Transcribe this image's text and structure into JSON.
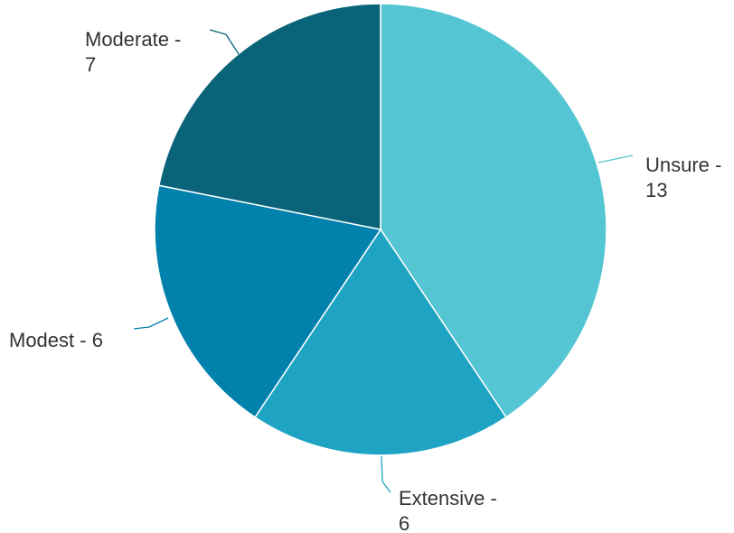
{
  "chart_data": {
    "type": "pie",
    "title": "",
    "slices": [
      {
        "name": "Unsure",
        "value": 13,
        "color": "#54C5D3",
        "label_lines": [
          "Unsure -",
          "13"
        ]
      },
      {
        "name": "Extensive",
        "value": 6,
        "color": "#1FA3C3",
        "label_lines": [
          "Extensive -",
          "6"
        ]
      },
      {
        "name": "Modest",
        "value": 6,
        "color": "#0181AB",
        "label_lines": [
          "Modest - 6"
        ]
      },
      {
        "name": "Moderate",
        "value": 7,
        "color": "#096479",
        "label_lines": [
          "Moderate -",
          "7"
        ]
      }
    ]
  }
}
